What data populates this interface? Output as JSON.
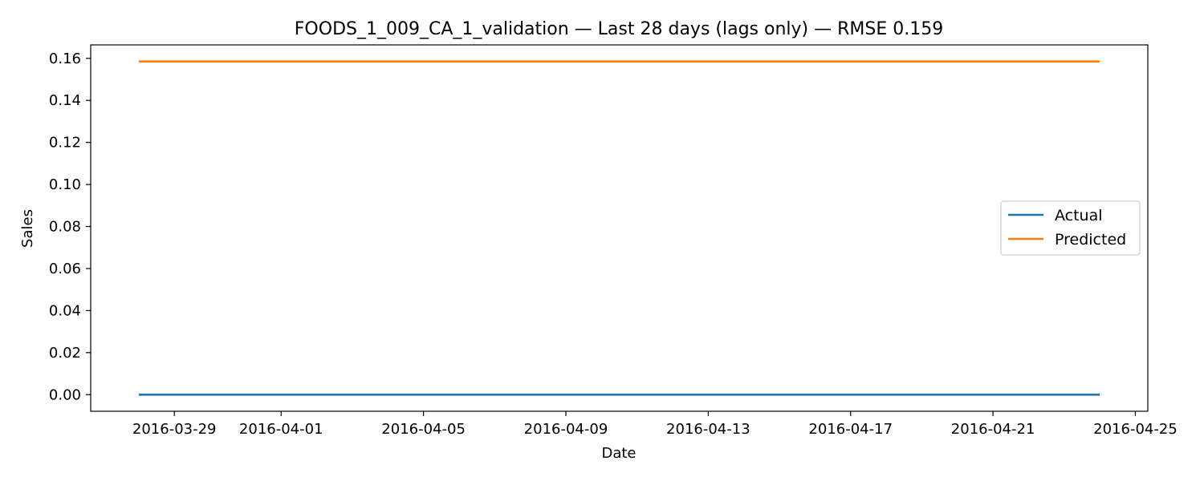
{
  "chart_data": {
    "type": "line",
    "title": "FOODS_1_009_CA_1_validation — Last 28 days (lags only) — RMSE 0.159",
    "xlabel": "Date",
    "ylabel": "Sales",
    "x_start": "2016-03-28",
    "x_end": "2016-04-24",
    "x": [
      "2016-03-28",
      "2016-03-29",
      "2016-03-30",
      "2016-03-31",
      "2016-04-01",
      "2016-04-02",
      "2016-04-03",
      "2016-04-04",
      "2016-04-05",
      "2016-04-06",
      "2016-04-07",
      "2016-04-08",
      "2016-04-09",
      "2016-04-10",
      "2016-04-11",
      "2016-04-12",
      "2016-04-13",
      "2016-04-14",
      "2016-04-15",
      "2016-04-16",
      "2016-04-17",
      "2016-04-18",
      "2016-04-19",
      "2016-04-20",
      "2016-04-21",
      "2016-04-22",
      "2016-04-23",
      "2016-04-24"
    ],
    "series": [
      {
        "name": "Actual",
        "color": "#1f77b4",
        "values": [
          0,
          0,
          0,
          0,
          0,
          0,
          0,
          0,
          0,
          0,
          0,
          0,
          0,
          0,
          0,
          0,
          0,
          0,
          0,
          0,
          0,
          0,
          0,
          0,
          0,
          0,
          0,
          0
        ]
      },
      {
        "name": "Predicted",
        "color": "#ff7f0e",
        "values": [
          0.1585,
          0.1585,
          0.1585,
          0.1585,
          0.1585,
          0.1585,
          0.1585,
          0.1585,
          0.1585,
          0.1585,
          0.1585,
          0.1585,
          0.1585,
          0.1585,
          0.1585,
          0.1585,
          0.1585,
          0.1585,
          0.1585,
          0.1585,
          0.1585,
          0.1585,
          0.1585,
          0.1585,
          0.1585,
          0.1585,
          0.1585,
          0.1585
        ]
      }
    ],
    "xlim": [
      "2016-03-26.65",
      "2016-04-25.35"
    ],
    "ylim": [
      -0.0079,
      0.1664
    ],
    "xticks": [
      "2016-03-29",
      "2016-04-01",
      "2016-04-05",
      "2016-04-09",
      "2016-04-13",
      "2016-04-17",
      "2016-04-21",
      "2016-04-25"
    ],
    "yticks": [
      0.0,
      0.02,
      0.04,
      0.06,
      0.08,
      0.1,
      0.12,
      0.14,
      0.16
    ],
    "ytick_labels": [
      "0.00",
      "0.02",
      "0.04",
      "0.06",
      "0.08",
      "0.10",
      "0.12",
      "0.14",
      "0.16"
    ],
    "grid": false,
    "legend_position": "center-right"
  }
}
